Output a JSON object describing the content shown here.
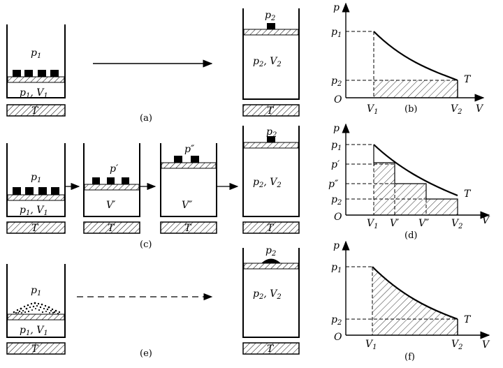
{
  "panels": {
    "a": {
      "caption": "(a)",
      "initial": {
        "top_pressure": "p",
        "top_sub": "1",
        "state": "p",
        "state_sub": "1",
        "state_vol": "V",
        "state_vol_sub": "1",
        "reservoir": "T"
      },
      "final": {
        "top_pressure": "p",
        "top_sub": "2",
        "state": "p",
        "state_sub": "2",
        "state_vol": "V",
        "state_vol_sub": "2",
        "reservoir": "T"
      }
    },
    "b": {
      "caption": "(b)",
      "y_axis": "p",
      "x_axis": "V",
      "origin": "O",
      "y_ticks": [
        {
          "t": "p",
          "s": "1"
        },
        {
          "t": "p",
          "s": "2"
        }
      ],
      "x_ticks": [
        {
          "t": "V",
          "s": "1"
        },
        {
          "t": "V",
          "s": "2"
        }
      ],
      "curve_label": "T"
    },
    "c": {
      "caption": "(c)",
      "stages": [
        {
          "p": "p",
          "ps": "1",
          "v": "V",
          "vs": "1",
          "reservoir": "T"
        },
        {
          "p": "p′",
          "v": "V′",
          "reservoir": "T"
        },
        {
          "p": "p″",
          "v": "V″",
          "reservoir": "T"
        },
        {
          "p": "p",
          "ps": "2",
          "v": "V",
          "vs": "2",
          "reservoir": "T"
        }
      ]
    },
    "d": {
      "caption": "(d)",
      "y_axis": "p",
      "x_axis": "V",
      "origin": "O",
      "y_ticks": [
        {
          "t": "p",
          "s": "1"
        },
        {
          "t": "p′",
          "s": ""
        },
        {
          "t": "p″",
          "s": ""
        },
        {
          "t": "p",
          "s": "2"
        }
      ],
      "x_ticks": [
        {
          "t": "V",
          "s": "1"
        },
        {
          "t": "V′",
          "s": ""
        },
        {
          "t": "V″",
          "s": ""
        },
        {
          "t": "V",
          "s": "2"
        }
      ],
      "curve_label": "T"
    },
    "e": {
      "caption": "(e)",
      "initial": {
        "top_pressure": "p",
        "top_sub": "1",
        "state": "p",
        "state_sub": "1",
        "state_vol": "V",
        "state_vol_sub": "1",
        "reservoir": "T"
      },
      "final": {
        "top_pressure": "p",
        "top_sub": "2",
        "state": "p",
        "state_sub": "2",
        "state_vol": "V",
        "state_vol_sub": "2",
        "reservoir": "T"
      }
    },
    "f": {
      "caption": "(f)",
      "y_axis": "p",
      "x_axis": "V",
      "origin": "O",
      "y_ticks": [
        {
          "t": "p",
          "s": "1"
        },
        {
          "t": "p",
          "s": "2"
        }
      ],
      "x_ticks": [
        {
          "t": "V",
          "s": "1"
        },
        {
          "t": "V",
          "s": "2"
        }
      ],
      "curve_label": "T"
    }
  }
}
